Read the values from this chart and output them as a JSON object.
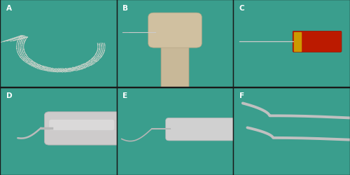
{
  "layout": {
    "rows": 2,
    "cols": 3,
    "figsize": [
      5.0,
      2.51
    ],
    "dpi": 100
  },
  "teal_bg": "#3a9e8d",
  "outer_bg": "#666666",
  "labels": [
    "A",
    "B",
    "C",
    "D",
    "E",
    "F"
  ],
  "label_color": "#ffffff",
  "label_fontsize": 7.5,
  "wire_color": "#d8d8d0",
  "silver": "#c5c5c5",
  "silver_dark": "#a8a8a8",
  "silver_light": "#e0e0e0",
  "red_handle": "#bb1a00",
  "yellow_ring": "#cc9900",
  "handle_color": "#cdcbcb",
  "border_color": "#1a1a1a"
}
